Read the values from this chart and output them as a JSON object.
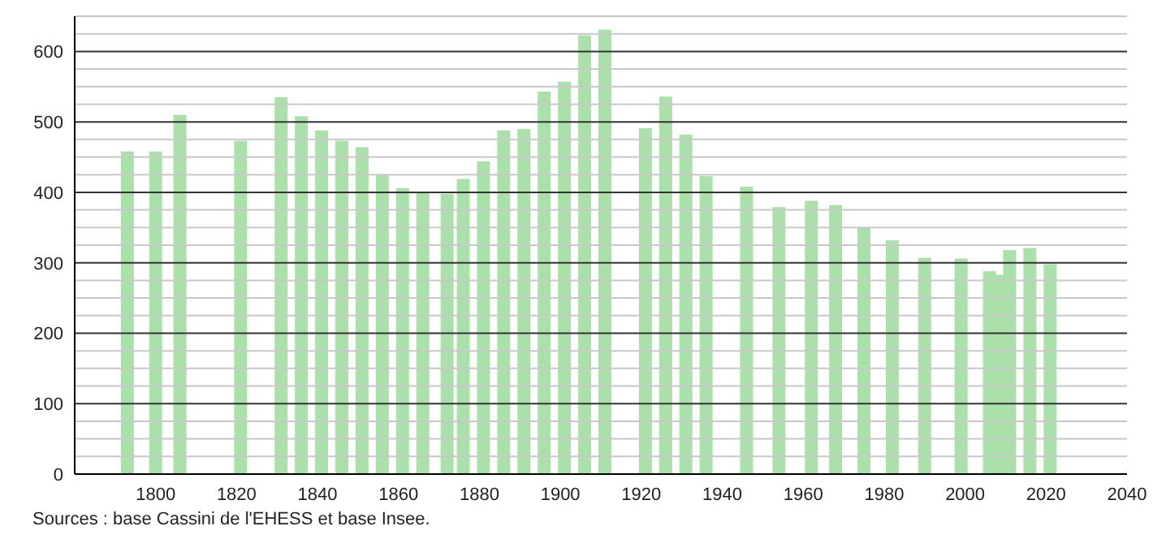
{
  "chart_data": {
    "type": "bar",
    "x": [
      1793,
      1800,
      1806,
      1821,
      1831,
      1836,
      1841,
      1846,
      1851,
      1856,
      1861,
      1866,
      1872,
      1876,
      1881,
      1886,
      1891,
      1896,
      1901,
      1906,
      1911,
      1921,
      1926,
      1931,
      1936,
      1946,
      1954,
      1962,
      1968,
      1975,
      1982,
      1990,
      1999,
      2006,
      2008,
      2011,
      2016,
      2021
    ],
    "values": [
      458,
      458,
      510,
      473,
      535,
      508,
      488,
      473,
      464,
      424,
      406,
      399,
      398,
      419,
      444,
      488,
      490,
      543,
      557,
      623,
      631,
      491,
      536,
      482,
      423,
      408,
      379,
      388,
      382,
      350,
      332,
      307,
      306,
      288,
      283,
      318,
      321,
      298
    ],
    "color": "#abe0ab",
    "xlim": [
      1780,
      2040
    ],
    "xticks": [
      1800,
      1820,
      1840,
      1860,
      1880,
      1900,
      1920,
      1940,
      1960,
      1980,
      2000,
      2020,
      2040
    ],
    "ylim": [
      0,
      650
    ],
    "yticks": [
      0,
      {
        "value": 25,
        "label": null
      },
      {
        "value": 50,
        "label": null
      },
      {
        "value": 75,
        "label": null
      },
      100,
      {
        "value": 125,
        "label": null
      },
      {
        "value": 150,
        "label": null
      },
      {
        "value": 175,
        "label": null
      },
      200,
      {
        "value": 225,
        "label": null
      },
      {
        "value": 250,
        "label": null
      },
      {
        "value": 275,
        "label": null
      },
      300,
      {
        "value": 325,
        "label": null
      },
      {
        "value": 350,
        "label": null
      },
      {
        "value": 375,
        "label": null
      },
      400,
      {
        "value": 425,
        "label": null
      },
      {
        "value": 450,
        "label": null
      },
      {
        "value": 475,
        "label": null
      },
      500,
      {
        "value": 525,
        "label": null
      },
      {
        "value": 550,
        "label": null
      },
      {
        "value": 575,
        "label": null
      },
      600,
      {
        "value": 625,
        "label": null
      },
      {
        "value": 650,
        "label": null
      }
    ],
    "grid": true,
    "annotations": [
      "Sources : base Cassini de l'EHESS et base Insee."
    ]
  }
}
